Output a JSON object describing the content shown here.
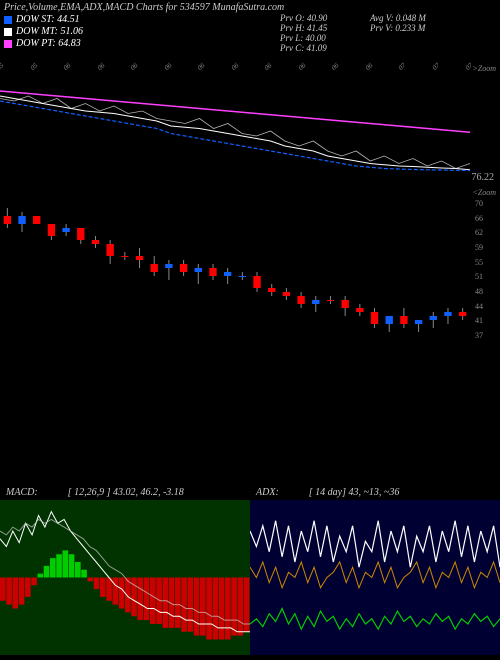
{
  "title": "Price,Volume,EMA,ADX,MACD Charts for 534597 MunafaSutra.com",
  "legend": [
    {
      "label": "DOW ST:",
      "value": "44.51",
      "color": "#1060ff"
    },
    {
      "label": "DOW MT:",
      "value": "51.06",
      "color": "#ffffff"
    },
    {
      "label": "DOW PT:",
      "value": "64.83",
      "color": "#ff40ff"
    }
  ],
  "ohlc": {
    "o_label": "Prv  O:",
    "o": "40.90",
    "h_label": "Prv  H:",
    "h": "41.45",
    "l_label": "Prv  L:",
    "l": "40.00",
    "c_label": "Prv  C:",
    "c": "41.09"
  },
  "avg": {
    "avg_label": "Avg V:",
    "avg": "0.048 M",
    "prv_label": "Prv  V:",
    "prv": "0.233 M"
  },
  "dates": [
    "05",
    "05",
    "06",
    "06",
    "06",
    "06",
    "06",
    "06",
    "06",
    "06",
    "06",
    "06",
    "07",
    "07",
    "07"
  ],
  "zoom_top": ">Zoom",
  "zoom_bot": "<Zoom",
  "ema_panel": {
    "type": "line",
    "ylim": [
      70,
      110
    ],
    "price_callout": "76.22",
    "series": {
      "st": {
        "color": "#1060ff",
        "dash": "4 2",
        "width": 1.2,
        "y": [
          104,
          103,
          102,
          101,
          100,
          99,
          98,
          97,
          96,
          95,
          94,
          93,
          91,
          90,
          89,
          88,
          87,
          86,
          85,
          84,
          83,
          82,
          81,
          80,
          79,
          78,
          77.5,
          77,
          76.8,
          76.6,
          76.5,
          76.4,
          76.3,
          76.22
        ]
      },
      "mt": {
        "color": "#ffffff",
        "width": 1,
        "y": [
          106,
          105,
          104,
          103,
          102,
          101,
          100,
          99.5,
          99,
          98,
          97,
          96,
          94,
          93.5,
          93,
          92,
          91,
          90,
          89,
          88,
          86,
          85,
          84,
          82,
          81,
          80,
          79,
          78.5,
          78,
          77.8,
          77.5,
          77.2,
          77,
          76.5
        ]
      },
      "pt": {
        "color": "#ff40ff",
        "width": 1.5,
        "y": [
          108,
          107.5,
          107,
          106.5,
          106,
          105.5,
          105,
          104.5,
          104,
          103.5,
          103,
          102.5,
          102,
          101.5,
          101,
          100.5,
          100,
          99.5,
          99,
          98.5,
          98,
          97.5,
          97,
          96.5,
          96,
          95.5,
          95,
          94.5,
          94,
          93.5,
          93,
          92.5,
          92,
          91.5
        ]
      },
      "jag": {
        "color": "#ffffff",
        "width": 0.8,
        "y": [
          105,
          104,
          106,
          103,
          105,
          101,
          103,
          100,
          102,
          99,
          100,
          97,
          96,
          95,
          97,
          93,
          95,
          91,
          90,
          92,
          88,
          86,
          88,
          84,
          82,
          84,
          80,
          82,
          79,
          81,
          78,
          80,
          77,
          79
        ]
      }
    }
  },
  "candle_panel": {
    "type": "candlestick",
    "ylim": [
      37,
      72
    ],
    "yticks": [
      70,
      66,
      62,
      59,
      55,
      51,
      48,
      44,
      41,
      37
    ],
    "up_color": "#1060ff",
    "down_color": "#ff0000",
    "wick_color": "#888888",
    "candles": [
      {
        "o": 68,
        "h": 70,
        "l": 65,
        "c": 66,
        "up": false
      },
      {
        "o": 66,
        "h": 69,
        "l": 64,
        "c": 68,
        "up": true
      },
      {
        "o": 68,
        "h": 68,
        "l": 66,
        "c": 66,
        "up": false
      },
      {
        "o": 66,
        "h": 66,
        "l": 62,
        "c": 63,
        "up": false
      },
      {
        "o": 64,
        "h": 66,
        "l": 63,
        "c": 65,
        "up": true
      },
      {
        "o": 65,
        "h": 65,
        "l": 61,
        "c": 62,
        "up": false
      },
      {
        "o": 62,
        "h": 63,
        "l": 60,
        "c": 61,
        "up": false
      },
      {
        "o": 61,
        "h": 62,
        "l": 56,
        "c": 58,
        "up": false
      },
      {
        "o": 58,
        "h": 59,
        "l": 57,
        "c": 58,
        "up": false
      },
      {
        "o": 58,
        "h": 60,
        "l": 55,
        "c": 57,
        "up": false
      },
      {
        "o": 56,
        "h": 58,
        "l": 53,
        "c": 54,
        "up": false
      },
      {
        "o": 55,
        "h": 57,
        "l": 52,
        "c": 56,
        "up": true
      },
      {
        "o": 56,
        "h": 57,
        "l": 53,
        "c": 54,
        "up": false
      },
      {
        "o": 54,
        "h": 56,
        "l": 51,
        "c": 55,
        "up": true
      },
      {
        "o": 55,
        "h": 56,
        "l": 52,
        "c": 53,
        "up": false
      },
      {
        "o": 53,
        "h": 55,
        "l": 51,
        "c": 54,
        "up": true
      },
      {
        "o": 53,
        "h": 54,
        "l": 52,
        "c": 53,
        "up": true
      },
      {
        "o": 53,
        "h": 54,
        "l": 49,
        "c": 50,
        "up": false
      },
      {
        "o": 50,
        "h": 51,
        "l": 48,
        "c": 49,
        "up": false
      },
      {
        "o": 49,
        "h": 50,
        "l": 47,
        "c": 48,
        "up": false
      },
      {
        "o": 48,
        "h": 49,
        "l": 45,
        "c": 46,
        "up": false
      },
      {
        "o": 46,
        "h": 48,
        "l": 44,
        "c": 47,
        "up": true
      },
      {
        "o": 47,
        "h": 48,
        "l": 46,
        "c": 47,
        "up": false
      },
      {
        "o": 47,
        "h": 48,
        "l": 43,
        "c": 45,
        "up": false
      },
      {
        "o": 45,
        "h": 46,
        "l": 43,
        "c": 44,
        "up": false
      },
      {
        "o": 44,
        "h": 45,
        "l": 40,
        "c": 41,
        "up": false
      },
      {
        "o": 41,
        "h": 43,
        "l": 39,
        "c": 43,
        "up": true
      },
      {
        "o": 43,
        "h": 45,
        "l": 40,
        "c": 41,
        "up": false
      },
      {
        "o": 41,
        "h": 42,
        "l": 39,
        "c": 42,
        "up": true
      },
      {
        "o": 42,
        "h": 44,
        "l": 40,
        "c": 43,
        "up": true
      },
      {
        "o": 43,
        "h": 45,
        "l": 41,
        "c": 44,
        "up": true
      },
      {
        "o": 44,
        "h": 45,
        "l": 42,
        "c": 43,
        "up": false
      }
    ]
  },
  "macd": {
    "label": "MACD:",
    "params": "[ 12,26,9 ] 43.02,  46.2,  -3.18",
    "bg": "#003300",
    "bar_up": "#00cc00",
    "bar_dn": "#cc0000",
    "line1_color": "#ffffff",
    "line2_color": "#cccccc",
    "hist": [
      -6,
      -7,
      -8,
      -7,
      -5,
      -2,
      1,
      3,
      5,
      6,
      7,
      6,
      4,
      2,
      -1,
      -3,
      -5,
      -6,
      -7,
      -8,
      -9,
      -10,
      -11,
      -11,
      -12,
      -12,
      -13,
      -13,
      -13,
      -14,
      -14,
      -15,
      -15,
      -16,
      -16,
      -16,
      -16,
      -15,
      -15,
      -14
    ],
    "line1": [
      10,
      8,
      12,
      9,
      14,
      11,
      16,
      13,
      17,
      14,
      15,
      12,
      10,
      8,
      6,
      4,
      2,
      0,
      -2,
      -3,
      -5,
      -6,
      -7,
      -8,
      -8,
      -9,
      -9,
      -10,
      -10,
      -11,
      -11,
      -12,
      -12,
      -12,
      -13,
      -13,
      -13,
      -14,
      -14,
      -14
    ],
    "line2": [
      12,
      11,
      13,
      12,
      14,
      13,
      15,
      14,
      15,
      14,
      13,
      12,
      11,
      10,
      8,
      7,
      5,
      3,
      2,
      1,
      -1,
      -2,
      -3,
      -4,
      -5,
      -6,
      -6,
      -7,
      -7,
      -8,
      -8,
      -9,
      -9,
      -10,
      -10,
      -11,
      -11,
      -11,
      -12,
      -12
    ],
    "ylim": [
      -20,
      20
    ]
  },
  "adx": {
    "label": "ADX:",
    "params": "[ 14  day] 43,  ~13,  ~36",
    "bg": "#000033",
    "adx_color": "#ffffff",
    "pdi_color": "#00cc00",
    "mdi_color": "#cc8800",
    "adx_line": [
      48,
      42,
      50,
      40,
      52,
      38,
      50,
      36,
      48,
      40,
      52,
      38,
      50,
      36,
      46,
      40,
      50,
      34,
      44,
      40,
      52,
      36,
      48,
      40,
      50,
      34,
      46,
      40,
      50,
      36,
      48,
      40,
      52,
      38,
      50,
      36,
      48,
      40,
      50,
      34
    ],
    "pdi_line": [
      12,
      14,
      11,
      16,
      13,
      18,
      12,
      16,
      10,
      15,
      11,
      17,
      13,
      15,
      10,
      14,
      11,
      16,
      12,
      14,
      10,
      15,
      12,
      17,
      13,
      15,
      11,
      14,
      12,
      16,
      13,
      15,
      10,
      14,
      12,
      16,
      13,
      15,
      11,
      14
    ],
    "mdi_line": [
      34,
      30,
      36,
      28,
      34,
      26,
      32,
      30,
      36,
      28,
      34,
      26,
      30,
      32,
      36,
      28,
      34,
      26,
      32,
      30,
      36,
      28,
      34,
      26,
      30,
      32,
      36,
      28,
      34,
      26,
      32,
      30,
      36,
      28,
      34,
      26,
      32,
      30,
      36,
      28
    ],
    "ylim": [
      0,
      60
    ]
  }
}
